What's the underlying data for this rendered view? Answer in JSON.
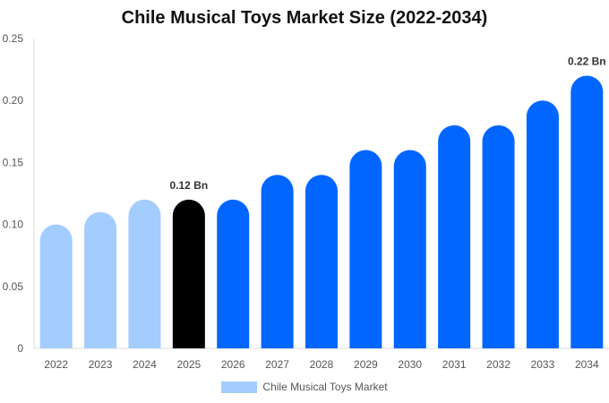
{
  "chart_data": {
    "type": "bar",
    "title": "Chile Musical Toys Market Size (2022-2034)",
    "categories": [
      "2022",
      "2023",
      "2024",
      "2025",
      "2026",
      "2027",
      "2028",
      "2029",
      "2030",
      "2031",
      "2032",
      "2033",
      "2034"
    ],
    "series": [
      {
        "name": "Chile Musical Toys Market",
        "values": [
          0.1,
          0.11,
          0.12,
          0.12,
          0.12,
          0.14,
          0.14,
          0.16,
          0.16,
          0.18,
          0.18,
          0.2,
          0.22
        ]
      }
    ],
    "ylim": [
      0,
      0.25
    ],
    "yticks": [
      "0",
      "0.05",
      "0.10",
      "0.15",
      "0.20",
      "0.25"
    ],
    "ytick_values": [
      0,
      0.05,
      0.1,
      0.15,
      0.2,
      0.25
    ],
    "annotations": [
      {
        "category": "2025",
        "text": "0.12 Bn"
      },
      {
        "category": "2034",
        "text": "0.22 Bn"
      }
    ],
    "colors": {
      "historical": "#a3ccff",
      "current": "#000000",
      "forecast": "#0066ff",
      "legend": "#a3ccff"
    },
    "bar_color_groups": [
      "historical",
      "historical",
      "historical",
      "current",
      "forecast",
      "forecast",
      "forecast",
      "forecast",
      "forecast",
      "forecast",
      "forecast",
      "forecast",
      "forecast"
    ],
    "legend_position": "bottom",
    "grid": false
  }
}
